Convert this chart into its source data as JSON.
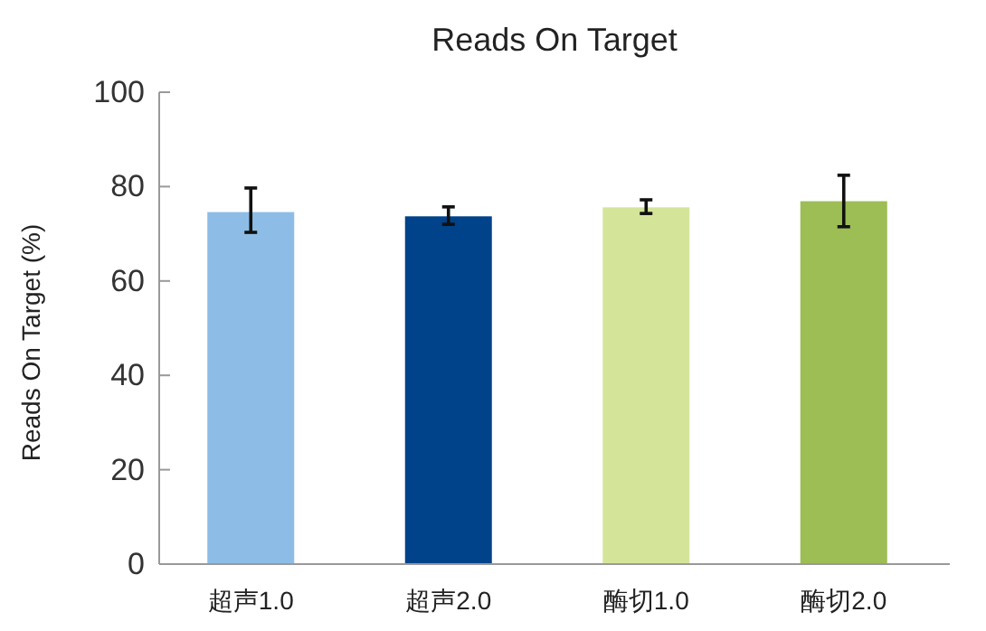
{
  "chart_data": {
    "type": "bar",
    "title": "Reads On Target",
    "ylabel": "Reads On Target (%)",
    "categories": [
      "超声1.0",
      "超声2.0",
      "酶切1.0",
      "酶切2.0"
    ],
    "values": [
      74.6,
      73.7,
      75.6,
      76.9
    ],
    "colors": [
      "#8dbde6",
      "#00438a",
      "#d4e59a",
      "#9dbd55"
    ],
    "errors": [
      [
        70.3,
        79.7
      ],
      [
        72.0,
        75.7
      ],
      [
        74.3,
        77.2
      ],
      [
        71.5,
        82.4
      ]
    ],
    "ylim": [
      0,
      100
    ],
    "yticks": [
      0,
      20,
      40,
      60,
      80,
      100
    ],
    "grid": false
  }
}
